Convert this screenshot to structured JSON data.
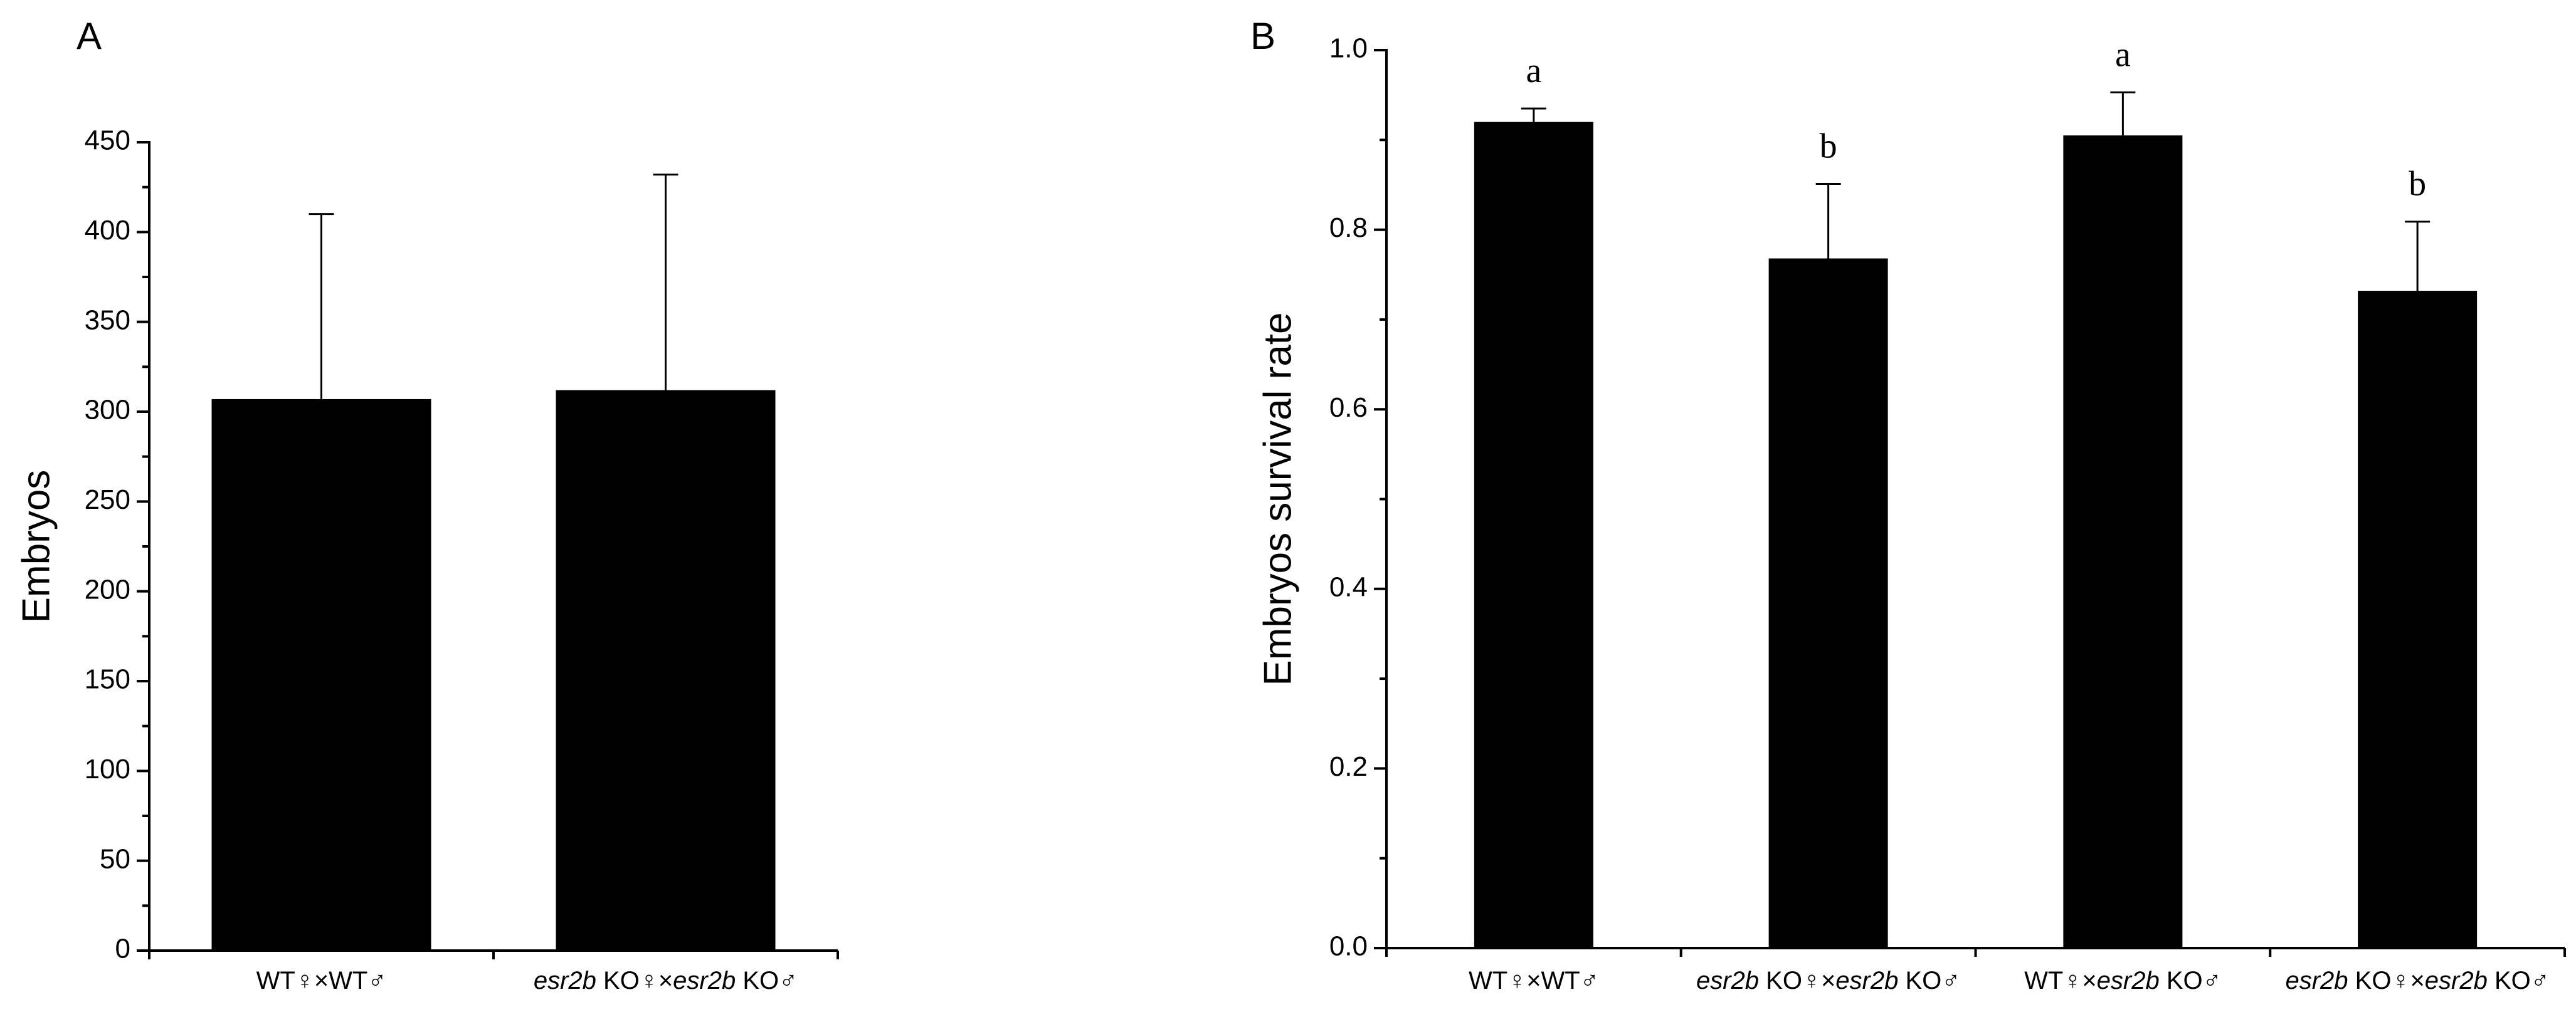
{
  "chart_data": [
    {
      "panel": "A",
      "type": "bar",
      "ylabel": "Embryos",
      "ylim": [
        0,
        450
      ],
      "yticks": [
        0,
        50,
        100,
        150,
        200,
        250,
        300,
        350,
        400,
        450
      ],
      "categories": [
        [
          {
            "t": "WT♀×WT♂",
            "i": false
          }
        ],
        [
          {
            "t": "esr2b",
            "i": true
          },
          {
            "t": " KO♀×",
            "i": false
          },
          {
            "t": "esr2b",
            "i": true
          },
          {
            "t": " KO♂",
            "i": false
          }
        ]
      ],
      "values": [
        307,
        312
      ],
      "errors": [
        103,
        120
      ],
      "color": "#000000"
    },
    {
      "panel": "B",
      "type": "bar",
      "ylabel": "Embryos survival rate",
      "ylim": [
        0,
        1.0
      ],
      "yticks": [
        "0.0",
        "0.2",
        "0.4",
        "0.6",
        "0.8",
        "1.0"
      ],
      "categories": [
        [
          {
            "t": "WT♀×WT♂",
            "i": false
          }
        ],
        [
          {
            "t": "esr2b",
            "i": true
          },
          {
            "t": " KO♀×",
            "i": false
          },
          {
            "t": "esr2b",
            "i": true
          },
          {
            "t": " KO♂",
            "i": false
          }
        ],
        [
          {
            "t": "WT♀×",
            "i": false
          },
          {
            "t": "esr2b",
            "i": true
          },
          {
            "t": " KO♂",
            "i": false
          }
        ],
        [
          {
            "t": "esr2b",
            "i": true
          },
          {
            "t": " KO♀×",
            "i": false
          },
          {
            "t": "esr2b",
            "i": true
          },
          {
            "t": " KO♂",
            "i": false
          }
        ]
      ],
      "values": [
        0.92,
        0.768,
        0.905,
        0.732
      ],
      "errors": [
        0.015,
        0.083,
        0.048,
        0.077
      ],
      "significance": [
        "a",
        "b",
        "a",
        "b"
      ],
      "color": "#000000"
    }
  ]
}
